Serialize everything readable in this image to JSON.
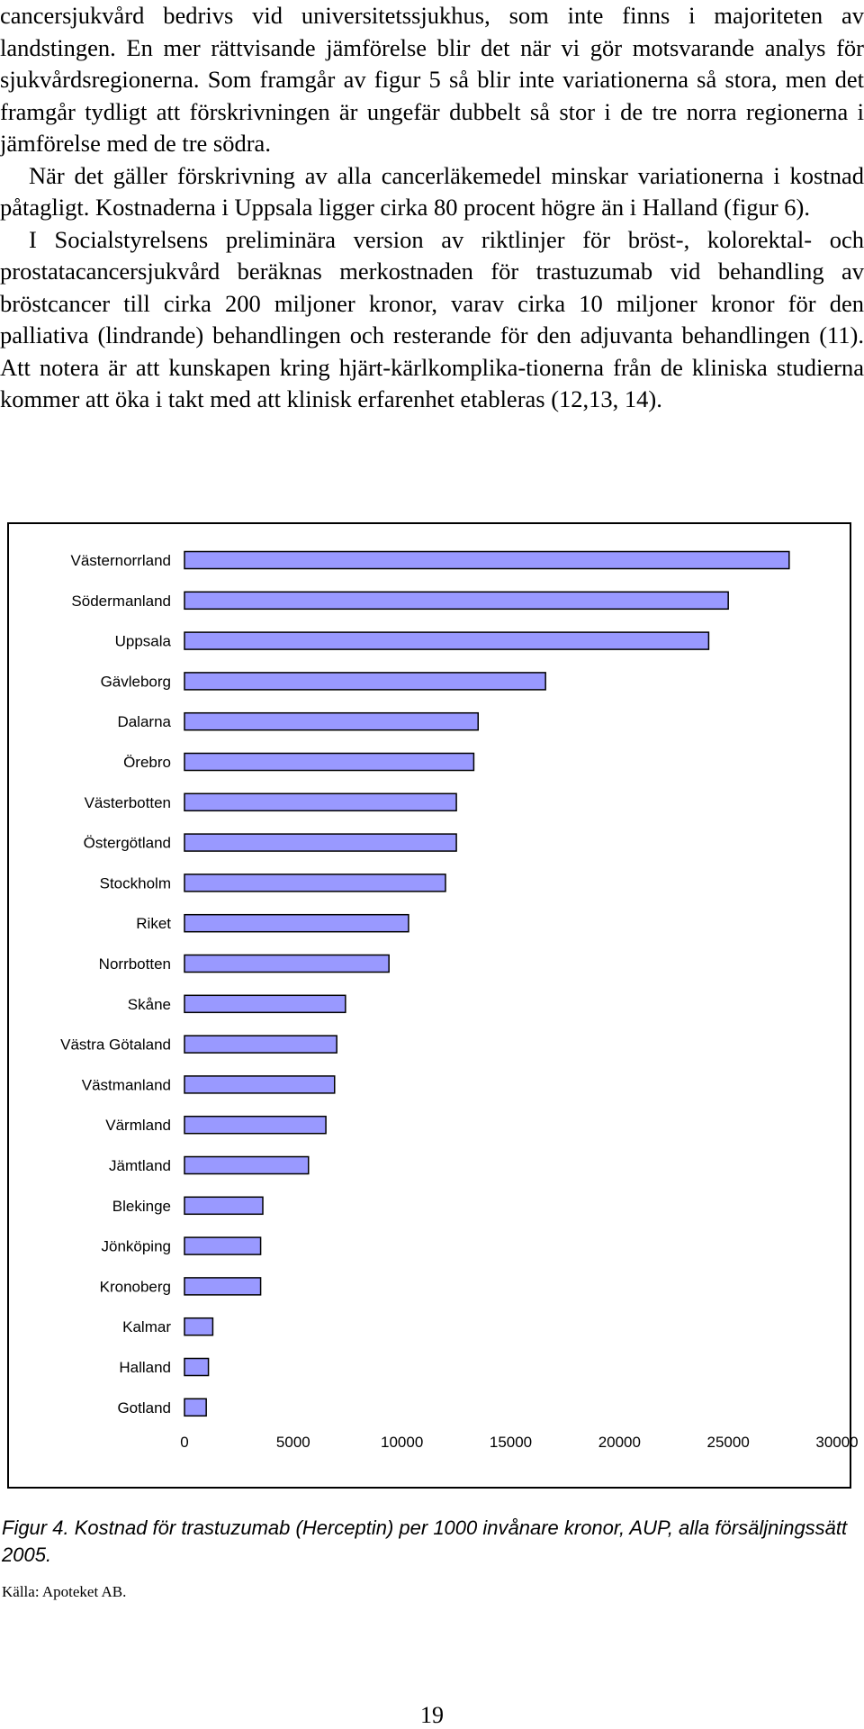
{
  "paragraphs": [
    "cancersjukvård bedrivs vid universitetssjukhus, som inte finns i majoriteten av landstingen. En mer rättvisande jämförelse blir det när vi gör motsvarande analys för sjukvårdsregionerna. Som framgår av figur 5 så blir inte variationerna så stora, men det framgår tydligt att förskrivningen är ungefär dubbelt så stor i de tre norra regionerna i jämförelse med de tre södra.",
    "När det gäller förskrivning av alla cancerläkemedel minskar variationerna i kostnad påtagligt. Kostnaderna i Uppsala ligger cirka 80 procent högre än i Halland (figur 6).",
    "I Socialstyrelsens preliminära version av riktlinjer för bröst-, kolorektal- och prostatacancersjukvård beräknas merkostnaden för trastuzumab vid behandling av bröstcancer till cirka 200 miljoner kronor, varav cirka 10 miljoner kronor för den palliativa (lindrande) behandlingen och resterande för den adjuvanta behandlingen (11). Att notera är att kunskapen kring hjärt-kärlkomplika-tionerna från de kliniska studierna kommer att öka i takt med att klinisk erfarenhet etableras (12,13, 14)."
  ],
  "chart_data": {
    "type": "bar",
    "orientation": "horizontal",
    "categories": [
      "Västernorrland",
      "Södermanland",
      "Uppsala",
      "Gävleborg",
      "Dalarna",
      "Örebro",
      "Västerbotten",
      "Östergötland",
      "Stockholm",
      "Riket",
      "Norrbotten",
      "Skåne",
      "Västra Götaland",
      "Västmanland",
      "Värmland",
      "Jämtland",
      "Blekinge",
      "Jönköping",
      "Kronoberg",
      "Kalmar",
      "Halland",
      "Gotland"
    ],
    "values": [
      27800,
      25000,
      24100,
      16600,
      13500,
      13300,
      12500,
      12500,
      12000,
      10300,
      9400,
      7400,
      7000,
      6900,
      6500,
      5700,
      3600,
      3500,
      3500,
      1300,
      1100,
      1000
    ],
    "xlim": [
      0,
      30000
    ],
    "xticks": [
      "0",
      "5000",
      "10000",
      "15000",
      "20000",
      "25000",
      "30000"
    ],
    "bar_color": "#9999ff",
    "bar_edge_color": "#000000",
    "grid": false
  },
  "caption": "Figur 4. Kostnad för trastuzumab (Herceptin) per 1000 invånare kronor, AUP, alla försäljningssätt 2005.",
  "source": "Källa: Apoteket AB.",
  "page_number": "19"
}
